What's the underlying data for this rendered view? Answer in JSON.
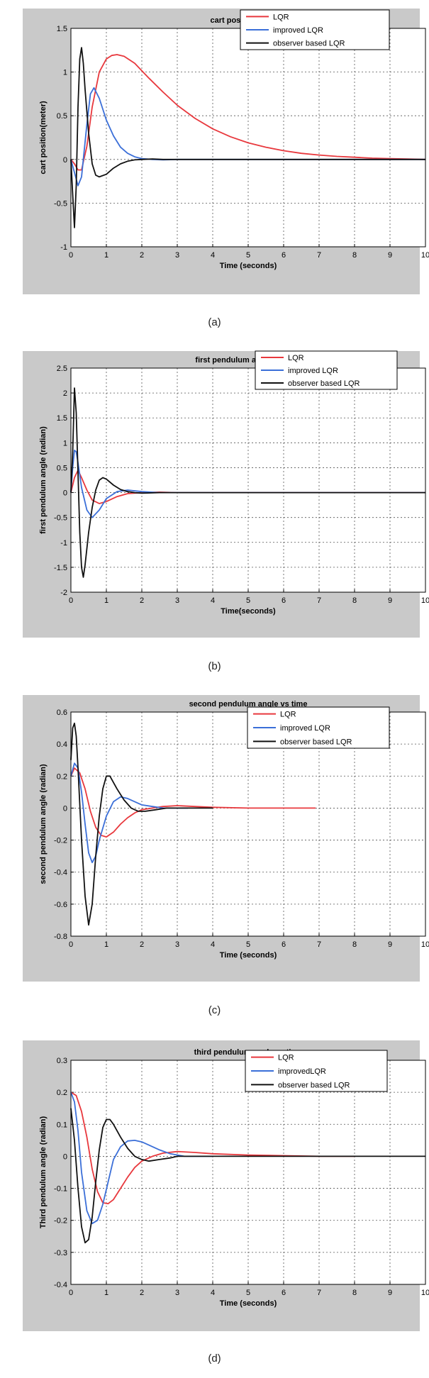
{
  "figure": {
    "panels": [
      {
        "caption": "(a)"
      },
      {
        "caption": "(b)"
      },
      {
        "caption": "(c)"
      },
      {
        "caption": "(d)"
      }
    ]
  },
  "chart_data": [
    {
      "type": "line",
      "title": "cart position vs time",
      "xlabel": "Time (seconds)",
      "ylabel": "cart position(meter)",
      "xlim": [
        0,
        10
      ],
      "ylim": [
        -1,
        1.5
      ],
      "xticks": [
        "0",
        "1",
        "2",
        "3",
        "4",
        "5",
        "6",
        "7",
        "8",
        "9",
        "10"
      ],
      "yticks": [
        "-1",
        "-0.5",
        "0",
        "0.5",
        "1",
        "1.5"
      ],
      "grid": true,
      "legend_position": "top-right",
      "series": [
        {
          "name": "LQR",
          "color": "#e8383d",
          "x": [
            0,
            0.1,
            0.2,
            0.3,
            0.45,
            0.6,
            0.8,
            1.0,
            1.15,
            1.3,
            1.5,
            1.8,
            2.2,
            2.6,
            3.0,
            3.5,
            4.0,
            4.5,
            5.0,
            5.5,
            6.0,
            6.5,
            7.0,
            7.5,
            8.0,
            8.5,
            9.0,
            9.5,
            10.0
          ],
          "y": [
            0,
            -0.05,
            -0.12,
            -0.12,
            0.15,
            0.6,
            1.0,
            1.15,
            1.19,
            1.2,
            1.18,
            1.1,
            0.93,
            0.77,
            0.62,
            0.47,
            0.35,
            0.26,
            0.19,
            0.14,
            0.1,
            0.07,
            0.05,
            0.035,
            0.025,
            0.015,
            0.01,
            0.005,
            0.0
          ]
        },
        {
          "name": "improved LQR",
          "color": "#3b6fd8",
          "x": [
            0,
            0.1,
            0.2,
            0.3,
            0.45,
            0.55,
            0.65,
            0.8,
            1.0,
            1.2,
            1.4,
            1.6,
            1.8,
            2.0,
            2.3,
            2.6,
            3.0,
            10.0
          ],
          "y": [
            0,
            -0.15,
            -0.3,
            -0.2,
            0.4,
            0.75,
            0.82,
            0.7,
            0.45,
            0.27,
            0.14,
            0.07,
            0.03,
            0.01,
            0.0,
            -0.005,
            0.0,
            0.0
          ]
        },
        {
          "name": "observer based LQR",
          "color": "#111111",
          "x": [
            0,
            0.05,
            0.1,
            0.15,
            0.2,
            0.25,
            0.3,
            0.35,
            0.4,
            0.5,
            0.6,
            0.7,
            0.8,
            1.0,
            1.2,
            1.4,
            1.6,
            1.8,
            2.0,
            2.3,
            2.6,
            3.0,
            10.0
          ],
          "y": [
            0,
            -0.4,
            -0.78,
            -0.3,
            0.6,
            1.15,
            1.28,
            1.1,
            0.8,
            0.3,
            -0.05,
            -0.18,
            -0.2,
            -0.17,
            -0.1,
            -0.05,
            -0.02,
            -0.005,
            0.0,
            0.005,
            0.0,
            0.0,
            0.0
          ]
        }
      ]
    },
    {
      "type": "line",
      "title": "first pendulum angle vs time",
      "xlabel": "Time(seconds)",
      "ylabel": "first pendulum angle (radian)",
      "xlim": [
        0,
        10
      ],
      "ylim": [
        -2,
        2.5
      ],
      "xticks": [
        "0",
        "1",
        "2",
        "3",
        "4",
        "5",
        "6",
        "7",
        "8",
        "9",
        "10"
      ],
      "yticks": [
        "-2",
        "-1.5",
        "-1",
        "-0.5",
        "0",
        "0.5",
        "1",
        "1.5",
        "2",
        "2.5"
      ],
      "grid": true,
      "legend_position": "top-right",
      "series": [
        {
          "name": "LQR",
          "color": "#e8383d",
          "x": [
            0,
            0.1,
            0.2,
            0.3,
            0.45,
            0.6,
            0.8,
            1.0,
            1.3,
            1.6,
            2.0,
            2.5,
            3.0,
            10.0
          ],
          "y": [
            0,
            0.3,
            0.45,
            0.3,
            0.05,
            -0.15,
            -0.22,
            -0.18,
            -0.08,
            -0.02,
            0.0,
            0.01,
            0.0,
            0.0
          ]
        },
        {
          "name": "improved LQR",
          "color": "#3b6fd8",
          "x": [
            0,
            0.05,
            0.1,
            0.15,
            0.2,
            0.3,
            0.45,
            0.6,
            0.8,
            1.0,
            1.3,
            1.6,
            2.0,
            2.5,
            3.0,
            10.0
          ],
          "y": [
            0,
            0.5,
            0.85,
            0.82,
            0.6,
            0.1,
            -0.35,
            -0.5,
            -0.35,
            -0.12,
            0.02,
            0.05,
            0.02,
            0.0,
            0.0,
            0.0
          ]
        },
        {
          "name": "observer based LQR",
          "color": "#111111",
          "x": [
            0,
            0.05,
            0.1,
            0.15,
            0.2,
            0.25,
            0.3,
            0.35,
            0.4,
            0.5,
            0.6,
            0.7,
            0.8,
            0.9,
            1.0,
            1.2,
            1.4,
            1.6,
            1.8,
            2.0,
            2.5,
            3.0,
            10.0
          ],
          "y": [
            0,
            0.8,
            2.1,
            1.6,
            0.4,
            -0.8,
            -1.5,
            -1.7,
            -1.45,
            -0.8,
            -0.3,
            0.05,
            0.25,
            0.3,
            0.27,
            0.15,
            0.06,
            0.02,
            0.0,
            -0.01,
            0.0,
            0.0,
            0.0
          ]
        }
      ]
    },
    {
      "type": "line",
      "title": "second pendulum angle vs time",
      "xlabel": "Time (seconds)",
      "ylabel": "second pendulum angle (radian)",
      "xlim": [
        0,
        10
      ],
      "ylim": [
        -0.8,
        0.6
      ],
      "xticks": [
        "0",
        "1",
        "2",
        "3",
        "4",
        "5",
        "6",
        "7",
        "8",
        "9",
        "10"
      ],
      "yticks": [
        "-0.8",
        "-0.6",
        "-0.4",
        "-0.2",
        "0",
        "0.2",
        "0.4",
        "0.6"
      ],
      "grid": true,
      "legend_position": "top-right",
      "series": [
        {
          "name": "LQR",
          "color": "#e8383d",
          "x": [
            0,
            0.1,
            0.25,
            0.4,
            0.55,
            0.7,
            0.85,
            1.0,
            1.2,
            1.4,
            1.6,
            1.8,
            2.0,
            2.3,
            2.6,
            3.0,
            3.5,
            4.0,
            5.0,
            6.0,
            6.9
          ],
          "y": [
            0.2,
            0.25,
            0.22,
            0.12,
            -0.02,
            -0.12,
            -0.17,
            -0.18,
            -0.15,
            -0.1,
            -0.06,
            -0.03,
            -0.01,
            0.0,
            0.01,
            0.015,
            0.01,
            0.005,
            0.0,
            0.0,
            0.0
          ]
        },
        {
          "name": "improved LQR",
          "color": "#3b6fd8",
          "x": [
            0,
            0.1,
            0.2,
            0.3,
            0.4,
            0.5,
            0.6,
            0.7,
            0.8,
            1.0,
            1.2,
            1.4,
            1.6,
            1.8,
            2.0,
            2.3,
            2.6,
            3.0,
            3.3
          ],
          "y": [
            0.2,
            0.28,
            0.25,
            0.1,
            -0.1,
            -0.28,
            -0.34,
            -0.3,
            -0.2,
            -0.05,
            0.04,
            0.07,
            0.06,
            0.04,
            0.02,
            0.01,
            0.0,
            0.0,
            0.0
          ]
        },
        {
          "name": "observer based LQR",
          "color": "#111111",
          "x": [
            0,
            0.05,
            0.1,
            0.15,
            0.2,
            0.3,
            0.4,
            0.5,
            0.6,
            0.7,
            0.8,
            0.9,
            1.0,
            1.1,
            1.3,
            1.5,
            1.7,
            1.9,
            2.1,
            2.4,
            2.7,
            3.0,
            3.5,
            4.0
          ],
          "y": [
            0.3,
            0.5,
            0.53,
            0.45,
            0.25,
            -0.2,
            -0.55,
            -0.73,
            -0.6,
            -0.3,
            -0.05,
            0.12,
            0.2,
            0.2,
            0.12,
            0.05,
            0.0,
            -0.02,
            -0.02,
            -0.01,
            0.0,
            0.0,
            0.0,
            0.0
          ]
        }
      ]
    },
    {
      "type": "line",
      "title": "third pendulum angle vs time",
      "xlabel": "Time (seconds)",
      "ylabel": "Third pendulum angle (radian)",
      "xlim": [
        0,
        10
      ],
      "ylim": [
        -0.4,
        0.3
      ],
      "xticks": [
        "0",
        "1",
        "2",
        "3",
        "4",
        "5",
        "6",
        "7",
        "8",
        "9",
        "10"
      ],
      "yticks": [
        "-0.4",
        "-0.3",
        "-0.2",
        "-0.1",
        "0",
        "0.1",
        "0.2",
        "0.3"
      ],
      "grid": true,
      "legend_position": "top-right",
      "series": [
        {
          "name": "LQR",
          "color": "#e8383d",
          "x": [
            0,
            0.15,
            0.3,
            0.45,
            0.6,
            0.75,
            0.9,
            1.05,
            1.2,
            1.4,
            1.6,
            1.8,
            2.0,
            2.3,
            2.6,
            3.0,
            3.5,
            4.0,
            5.0,
            6.0,
            7.0,
            8.0
          ],
          "y": [
            0.2,
            0.19,
            0.14,
            0.06,
            -0.04,
            -0.11,
            -0.145,
            -0.148,
            -0.135,
            -0.1,
            -0.065,
            -0.035,
            -0.015,
            0.0,
            0.01,
            0.015,
            0.012,
            0.008,
            0.004,
            0.002,
            0.0,
            0.0
          ]
        },
        {
          "name": "improvedLQR",
          "color": "#3b6fd8",
          "x": [
            0,
            0.1,
            0.2,
            0.3,
            0.45,
            0.6,
            0.75,
            0.9,
            1.05,
            1.2,
            1.4,
            1.6,
            1.8,
            2.0,
            2.2,
            2.5,
            2.8,
            3.2,
            3.6,
            4.0
          ],
          "y": [
            0.2,
            0.17,
            0.08,
            -0.05,
            -0.17,
            -0.21,
            -0.2,
            -0.15,
            -0.08,
            -0.01,
            0.03,
            0.048,
            0.05,
            0.045,
            0.035,
            0.02,
            0.008,
            0.0,
            0.0,
            0.0
          ]
        },
        {
          "name": "observer based LQR",
          "color": "#111111",
          "x": [
            0,
            0.1,
            0.2,
            0.3,
            0.4,
            0.5,
            0.6,
            0.7,
            0.8,
            0.9,
            1.0,
            1.1,
            1.2,
            1.4,
            1.6,
            1.8,
            2.0,
            2.2,
            2.5,
            2.8,
            3.0,
            3.5,
            4.0,
            10.0
          ],
          "y": [
            0.15,
            0.05,
            -0.1,
            -0.22,
            -0.27,
            -0.26,
            -0.19,
            -0.08,
            0.02,
            0.09,
            0.115,
            0.115,
            0.1,
            0.06,
            0.025,
            0.0,
            -0.01,
            -0.015,
            -0.01,
            -0.005,
            0.0,
            0.0,
            0.0,
            0.0
          ]
        }
      ]
    }
  ]
}
